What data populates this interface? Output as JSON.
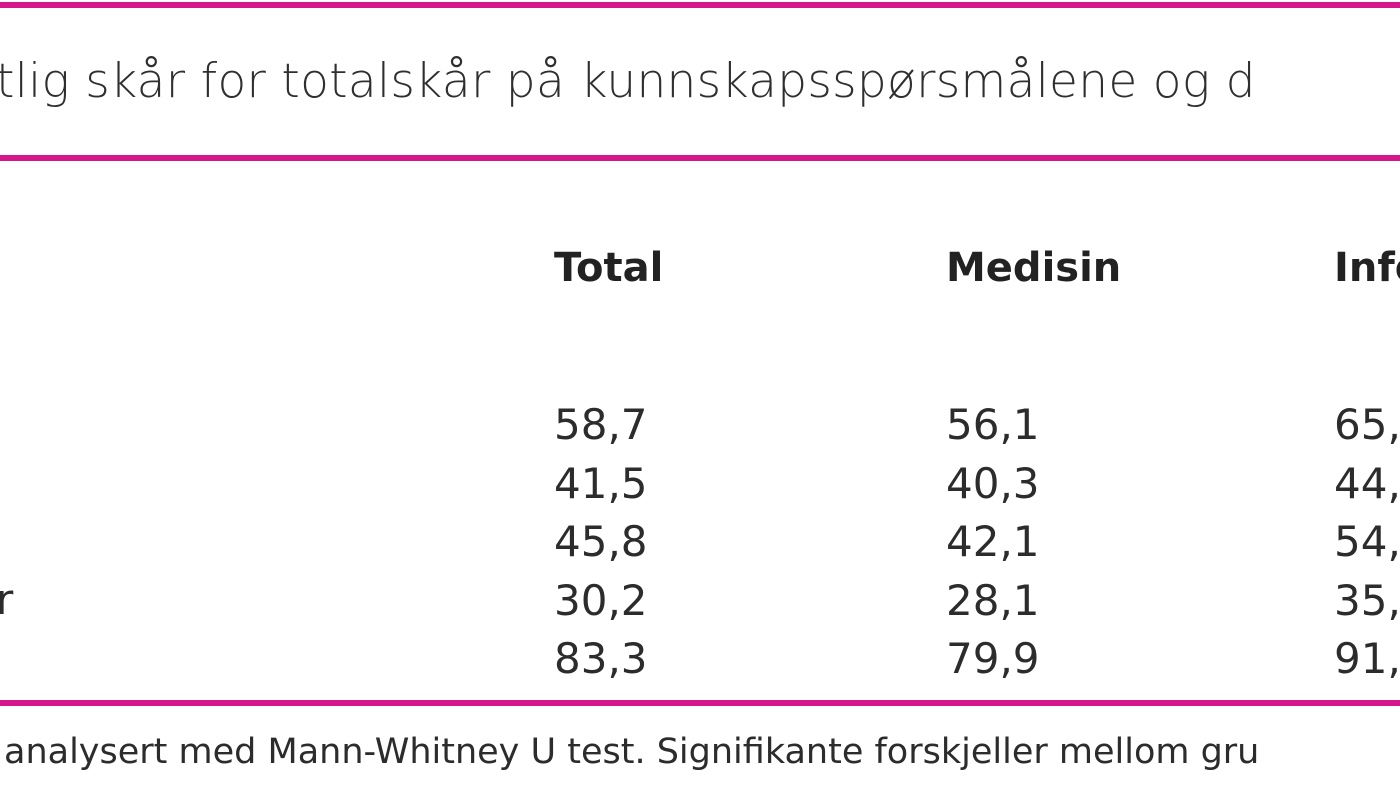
{
  "table": {
    "title": "tlig skår for totalskår på kunnskapsspørsmålene og d",
    "columns": [
      "Total",
      "Medisin",
      "Info"
    ],
    "rows": [
      [
        "58,7",
        "56,1",
        "65,"
      ],
      [
        "41,5",
        "40,3",
        "44,"
      ],
      [
        "45,8",
        "42,1",
        "54,"
      ],
      [
        "30,2",
        "28,1",
        "35,"
      ],
      [
        "83,3",
        "79,9",
        "91,"
      ]
    ],
    "row_label_fragment": "r",
    "footnote": "analysert med Mann-Whitney U test. Signifikante forskjeller mellom gru",
    "accent_color": "#d6168b"
  }
}
